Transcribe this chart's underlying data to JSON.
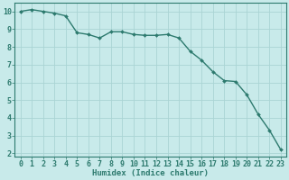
{
  "x": [
    0,
    1,
    2,
    3,
    4,
    5,
    6,
    7,
    8,
    9,
    10,
    11,
    12,
    13,
    14,
    15,
    16,
    17,
    18,
    19,
    20,
    21,
    22,
    23
  ],
  "y": [
    10.0,
    10.1,
    10.0,
    9.9,
    9.75,
    8.8,
    8.7,
    8.5,
    8.85,
    8.85,
    8.7,
    8.65,
    8.65,
    8.7,
    8.5,
    7.75,
    7.25,
    6.6,
    6.1,
    6.05,
    5.3,
    4.2,
    3.3,
    2.2
  ],
  "line_color": "#2d7a6e",
  "marker": "D",
  "marker_size": 2.0,
  "bg_color": "#c8eaea",
  "grid_color": "#aad4d4",
  "xlim": [
    -0.5,
    23.5
  ],
  "ylim": [
    1.8,
    10.5
  ],
  "xlabel": "Humidex (Indice chaleur)",
  "xlabel_fontsize": 6.5,
  "xtick_labels": [
    "0",
    "1",
    "2",
    "3",
    "4",
    "5",
    "6",
    "7",
    "8",
    "9",
    "10",
    "11",
    "12",
    "13",
    "14",
    "15",
    "16",
    "17",
    "18",
    "19",
    "20",
    "21",
    "22",
    "23"
  ],
  "ytick_values": [
    2,
    3,
    4,
    5,
    6,
    7,
    8,
    9,
    10
  ],
  "tick_color": "#2d7a6e",
  "tick_fontsize": 6.0,
  "line_width": 1.0,
  "spine_color": "#2d7a6e"
}
